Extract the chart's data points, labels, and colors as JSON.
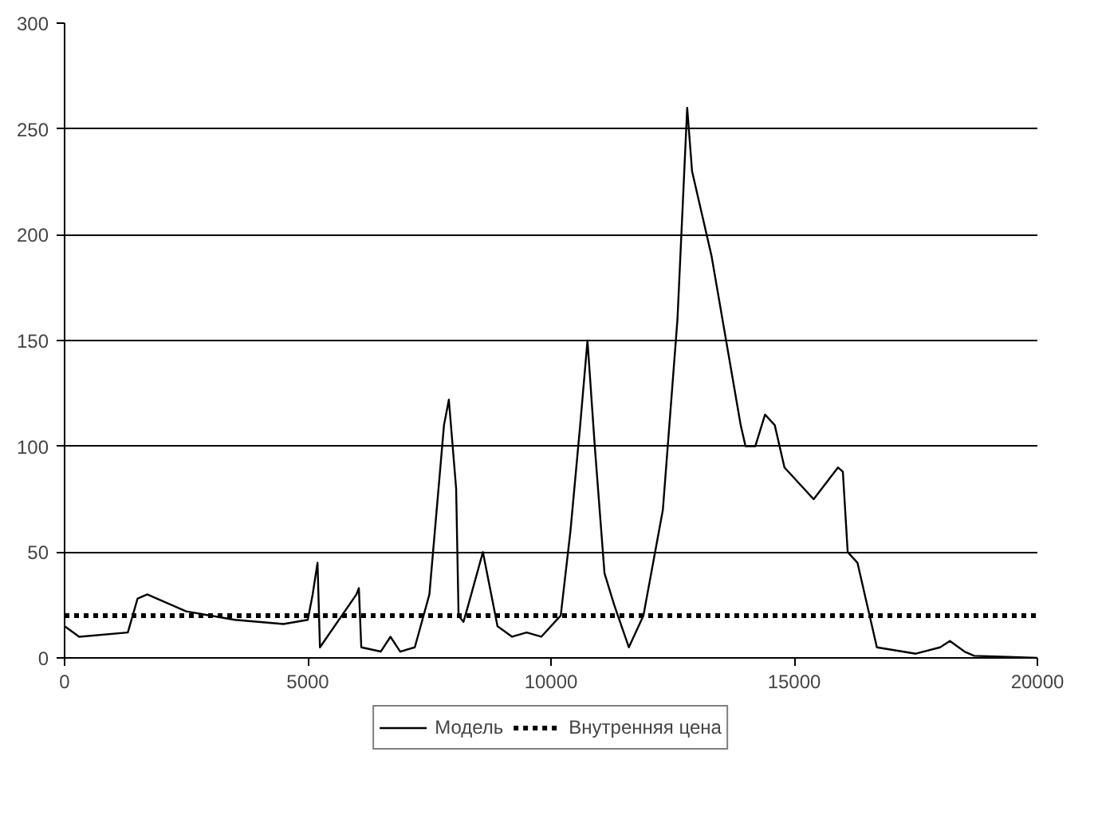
{
  "chart_data": {
    "type": "line",
    "xlim": [
      0,
      20000
    ],
    "ylim": [
      0,
      300
    ],
    "xticks": [
      0,
      5000,
      10000,
      15000,
      20000
    ],
    "yticks": [
      0,
      50,
      100,
      150,
      200,
      250,
      300
    ],
    "grid": "y",
    "legend": "bottom",
    "marker": "none",
    "series": [
      {
        "name": "Модель",
        "color": "#000000",
        "line_style": "solid",
        "x": [
          0,
          300,
          1300,
          1500,
          1700,
          2500,
          3500,
          4500,
          5000,
          5100,
          5200,
          5250,
          6000,
          6050,
          6100,
          6500,
          6700,
          6900,
          7200,
          7500,
          7800,
          7900,
          8050,
          8100,
          8200,
          8300,
          8600,
          8900,
          9200,
          9500,
          9800,
          10200,
          10400,
          10600,
          10750,
          10900,
          11100,
          11300,
          11600,
          11900,
          12300,
          12600,
          12800,
          12900,
          13100,
          13300,
          13600,
          13900,
          14000,
          14200,
          14400,
          14600,
          14800,
          15200,
          15400,
          15900,
          16000,
          16100,
          16300,
          16500,
          16700,
          17500,
          18000,
          18200,
          18500,
          18700,
          20000
        ],
        "values": [
          15,
          10,
          12,
          28,
          30,
          22,
          18,
          16,
          18,
          30,
          45,
          5,
          30,
          33,
          5,
          3,
          10,
          3,
          5,
          30,
          110,
          122,
          80,
          20,
          17,
          25,
          50,
          15,
          10,
          12,
          10,
          20,
          60,
          110,
          150,
          100,
          40,
          25,
          5,
          20,
          70,
          160,
          260,
          230,
          210,
          190,
          150,
          110,
          100,
          100,
          115,
          110,
          90,
          80,
          75,
          90,
          88,
          50,
          45,
          25,
          5,
          2,
          5,
          8,
          3,
          1,
          0
        ]
      }
    ],
    "ref_lines": [
      {
        "axis": "y",
        "value": 20,
        "label": "Внутренняя цена",
        "color": "#000000",
        "line_style": "dotted"
      }
    ]
  }
}
